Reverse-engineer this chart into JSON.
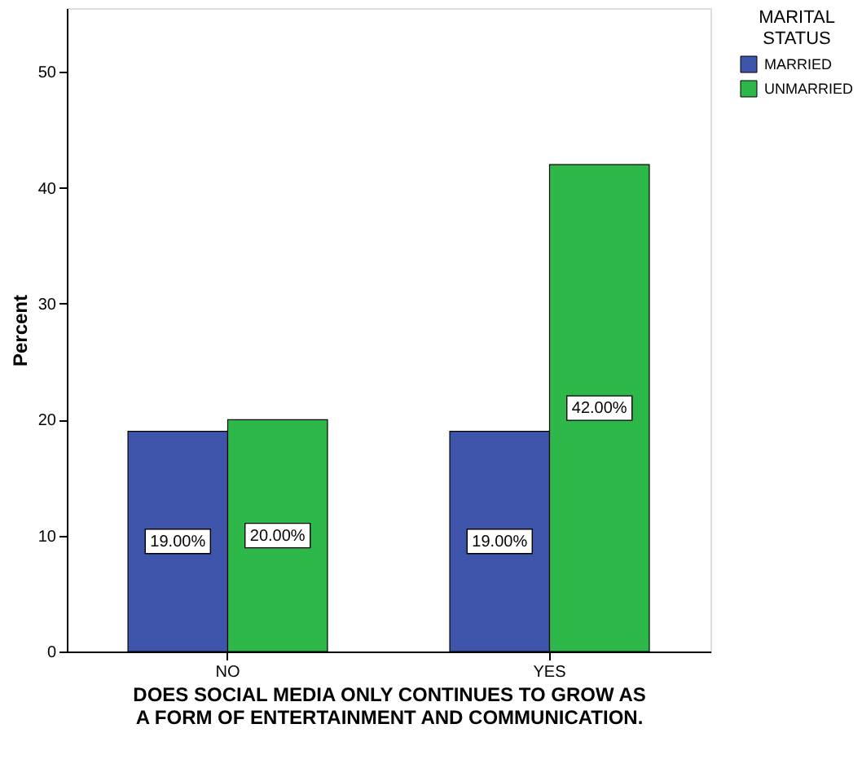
{
  "chart_data": {
    "type": "bar",
    "xlabel": "DOES SOCIAL MEDIA ONLY CONTINUES TO GROW AS A FORM OF ENTERTAINMENT AND COMMUNICATION.",
    "ylabel": "Percent",
    "legend_title": "MARITAL STATUS",
    "categories": [
      "NO",
      "YES"
    ],
    "series": [
      {
        "name": "MARRIED",
        "color": "#3e55ab",
        "values": [
          19,
          19
        ],
        "value_labels": [
          "19.00%",
          "19.00%"
        ]
      },
      {
        "name": "UNMARRIED",
        "color": "#2fb84a",
        "values": [
          20,
          42
        ],
        "value_labels": [
          "20.00%",
          "42.00%"
        ]
      }
    ],
    "ylim": [
      0,
      55.5
    ],
    "yticks": [
      0,
      10,
      20,
      30,
      40,
      50
    ],
    "grid": false,
    "legend": "right"
  }
}
